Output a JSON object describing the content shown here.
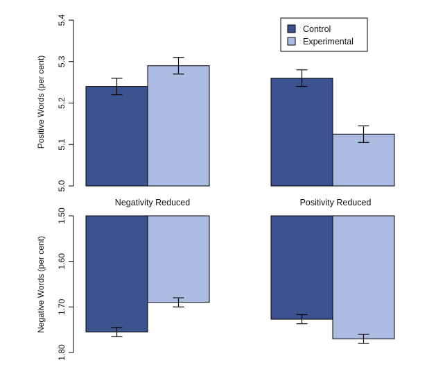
{
  "chart_data": [
    {
      "type": "bar",
      "categories": [
        "Negativity Reduced",
        "Positivity Reduced"
      ],
      "ylabel": "Positive Words (per cent)",
      "ylim": [
        5.0,
        5.4
      ],
      "yticks": [
        "5.0",
        "5.1",
        "5.2",
        "5.3",
        "5.4"
      ],
      "series": [
        {
          "name": "Control",
          "color": "#3c5390",
          "values": [
            5.24,
            5.26
          ],
          "errors": [
            0.02,
            0.02
          ]
        },
        {
          "name": "Experimental",
          "color": "#abbbe1",
          "values": [
            5.29,
            5.125
          ],
          "errors": [
            0.02,
            0.02
          ]
        }
      ],
      "legend": "top-right",
      "grid": false
    },
    {
      "type": "bar",
      "categories": [
        "Negativity Reduced",
        "Positivity Reduced"
      ],
      "ylabel": "Negative Words (per cent)",
      "ylim": [
        1.5,
        1.8
      ],
      "y_inverted": true,
      "yticks": [
        "1.50",
        "1.60",
        "1.70",
        "1.80"
      ],
      "series": [
        {
          "name": "Control",
          "color": "#3c5390",
          "values": [
            1.755,
            1.727
          ],
          "errors": [
            0.01,
            0.01
          ]
        },
        {
          "name": "Experimental",
          "color": "#abbbe1",
          "values": [
            1.69,
            1.77
          ],
          "errors": [
            0.01,
            0.01
          ]
        }
      ],
      "grid": false
    }
  ]
}
